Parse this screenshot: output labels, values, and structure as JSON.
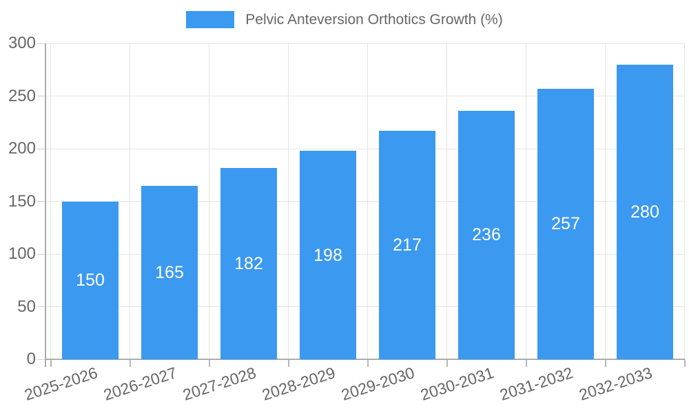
{
  "chart_data": {
    "type": "bar",
    "title": "Pelvic Anteversion Orthotics Growth (%)",
    "categories": [
      "2025-2026",
      "2026-2027",
      "2027-2028",
      "2028-2029",
      "2029-2030",
      "2030-2031",
      "2031-2032",
      "2032-2033"
    ],
    "values": [
      150,
      165,
      182,
      198,
      217,
      236,
      257,
      280
    ],
    "series": [
      {
        "name": "Pelvic Anteversion Orthotics Growth (%)",
        "values": [
          150,
          165,
          182,
          198,
          217,
          236,
          257,
          280
        ]
      }
    ],
    "xlabel": "",
    "ylabel": "",
    "ylim": [
      0,
      300
    ],
    "yticks": [
      0,
      50,
      100,
      150,
      200,
      250,
      300
    ],
    "grid": true,
    "legend_position": "top-center",
    "value_labels": "inside-center",
    "x_tick_rotation_deg": -18,
    "colors": {
      "bar": "#3B99F0",
      "value_label": "#FFFFFF",
      "axis_text": "#666666",
      "gridline": "#E4E4E4",
      "axis_line": "#ACACAC",
      "x_tick": "#B6B6B6",
      "y_tick": "#CFCFCF"
    }
  }
}
